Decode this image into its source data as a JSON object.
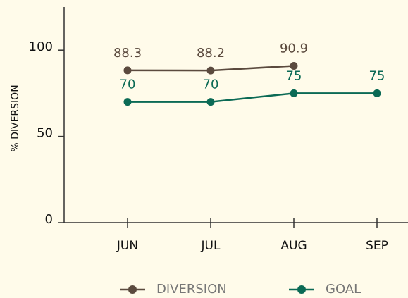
{
  "chart_data": {
    "type": "line",
    "y_label": "% DIVERSION",
    "categories": [
      "JUN",
      "JUL",
      "AUG",
      "SEP"
    ],
    "series": [
      {
        "name": "DIVERSION",
        "color": "#5b4a3e",
        "values": [
          88.3,
          88.2,
          90.9,
          null
        ]
      },
      {
        "name": "GOAL",
        "color": "#0b6a55",
        "values": [
          70,
          70,
          75,
          75
        ]
      }
    ],
    "ylim": [
      0,
      125
    ],
    "yticks": [
      0,
      50,
      100
    ],
    "legend": "bottom"
  }
}
